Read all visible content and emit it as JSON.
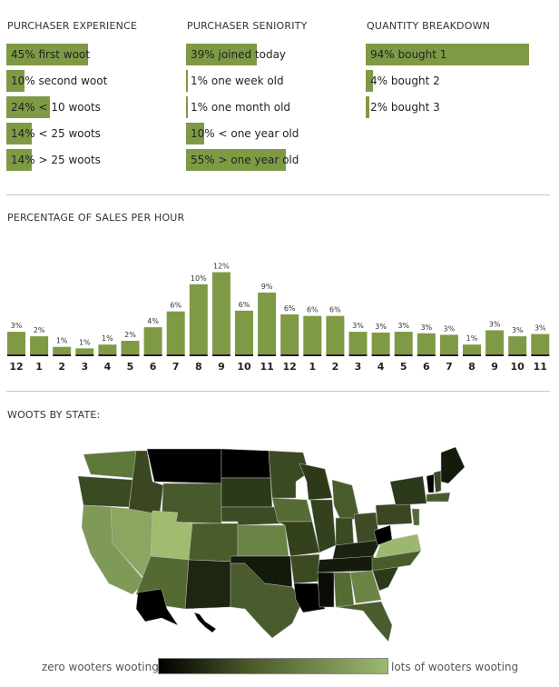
{
  "experience": {
    "title": "PURCHASER EXPERIENCE",
    "items": [
      {
        "label": "45% first woot",
        "value": 45
      },
      {
        "label": "10% second woot",
        "value": 10
      },
      {
        "label": "24% < 10 woots",
        "value": 24
      },
      {
        "label": "14% < 25 woots",
        "value": 14
      },
      {
        "label": "14% > 25 woots",
        "value": 14
      }
    ]
  },
  "seniority": {
    "title": "PURCHASER SENIORITY",
    "items": [
      {
        "label": "39% joined today",
        "value": 39
      },
      {
        "label": "1% one week old",
        "value": 1
      },
      {
        "label": "1% one month old",
        "value": 1
      },
      {
        "label": "10% < one year old",
        "value": 10
      },
      {
        "label": "55% > one year old",
        "value": 55
      }
    ]
  },
  "quantity": {
    "title": "QUANTITY BREAKDOWN",
    "items": [
      {
        "label": "94% bought 1",
        "value": 94
      },
      {
        "label": "4% bought 2",
        "value": 4
      },
      {
        "label": "2% bought 3",
        "value": 2
      }
    ]
  },
  "chart_data": {
    "type": "bar",
    "title": "PERCENTAGE OF SALES PER HOUR",
    "categories": [
      "12",
      "1",
      "2",
      "3",
      "4",
      "5",
      "6",
      "7",
      "8",
      "9",
      "10",
      "11",
      "12",
      "1",
      "2",
      "3",
      "4",
      "5",
      "6",
      "7",
      "8",
      "9",
      "10",
      "11"
    ],
    "values": [
      3,
      2,
      1,
      1,
      1,
      2,
      4,
      6,
      10,
      12,
      6,
      9,
      6,
      6,
      6,
      3,
      3,
      3,
      3,
      3,
      1,
      3,
      3,
      3
    ],
    "value_labels": [
      "3%",
      "2%",
      "1%",
      "1%",
      "1%",
      "2%",
      "4%",
      "6%",
      "10%",
      "12%",
      "6%",
      "9%",
      "6%",
      "6%",
      "6%",
      "3%",
      "3%",
      "3%",
      "3%",
      "3%",
      "1%",
      "3%",
      "3%",
      "3%"
    ],
    "heights": [
      3.0,
      2.4,
      1.0,
      0.8,
      1.3,
      1.8,
      3.6,
      5.7,
      9.3,
      10.9,
      5.8,
      8.2,
      5.3,
      5.1,
      5.1,
      3.0,
      2.9,
      3.0,
      2.8,
      2.6,
      1.3,
      3.2,
      2.4,
      2.7
    ],
    "bar_color": "#7f9a45"
  },
  "map": {
    "title": "WOOTS BY STATE:",
    "legend_low": "zero wooters wooting",
    "legend_high": "lots of wooters wooting",
    "color_low": "#000000",
    "color_high": "#9cb870"
  }
}
